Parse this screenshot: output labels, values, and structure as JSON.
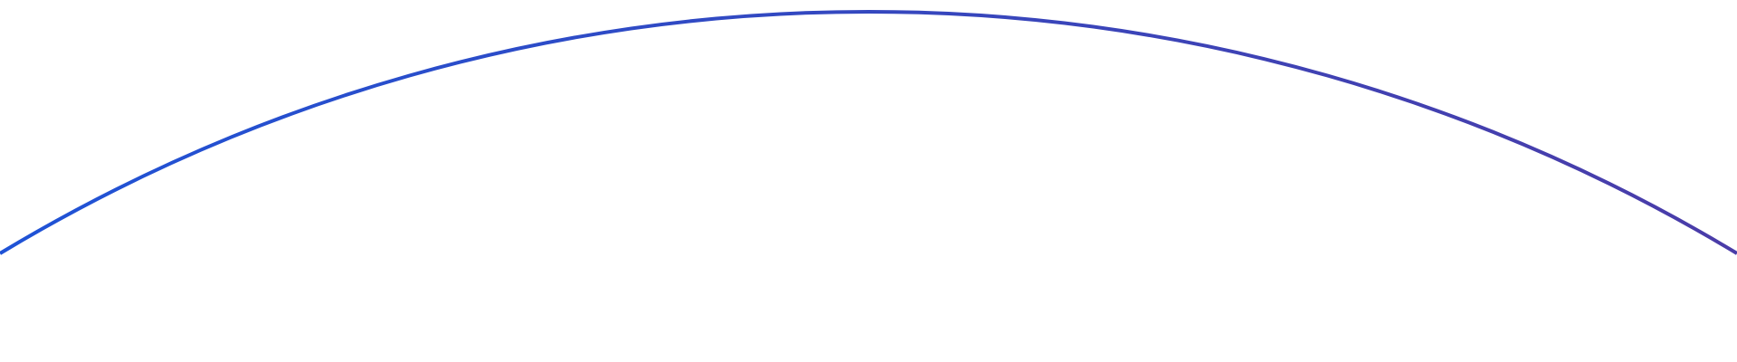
{
  "decoration": {
    "shape": "arc",
    "colors": {
      "background": "#ffffff",
      "stroke_start": "#1f53d6",
      "stroke_end": "#4a3ca8"
    }
  }
}
